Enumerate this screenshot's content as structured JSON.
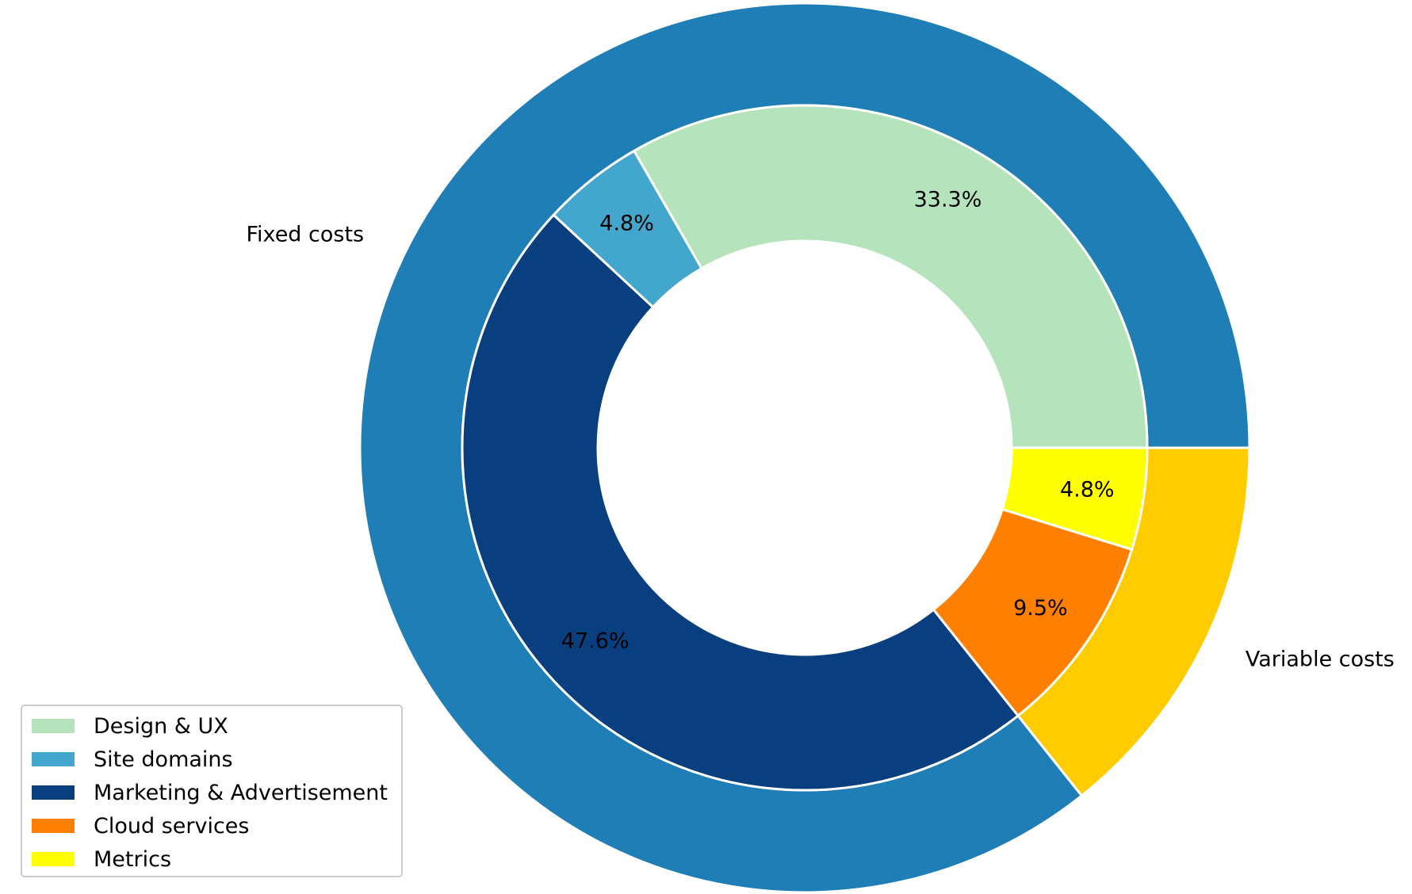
{
  "chart_data": {
    "type": "pie",
    "subtype": "nested-donut",
    "title": "",
    "outer_ring": {
      "categories": [
        "Fixed costs",
        "Variable costs"
      ],
      "values": [
        85.7,
        14.3
      ],
      "colors": [
        "#1f7eb6",
        "#ffcc00"
      ]
    },
    "inner_ring": {
      "categories": [
        "Design & UX",
        "Site domains",
        "Marketing & Advertisement",
        "Cloud services",
        "Metrics"
      ],
      "values": [
        33.3,
        4.8,
        47.6,
        9.5,
        4.8
      ],
      "labels": [
        "33.3%",
        "4.8%",
        "47.6%",
        "9.5%",
        "4.8%"
      ],
      "colors": [
        "#b4e3bc",
        "#43a6cc",
        "#0a3f7f",
        "#ff8000",
        "#ffff00"
      ]
    },
    "start_angle": 0,
    "direction": "counterclockwise",
    "legend": {
      "position": "lower-left",
      "entries": [
        "Design & UX",
        "Site domains",
        "Marketing & Advertisement",
        "Cloud services",
        "Metrics"
      ]
    }
  }
}
